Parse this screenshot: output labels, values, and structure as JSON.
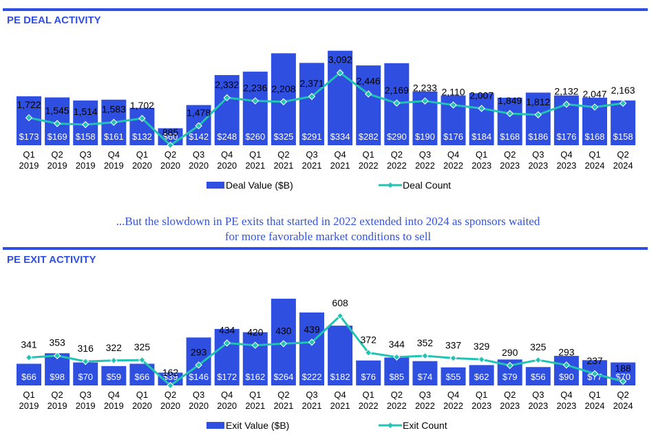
{
  "deal_section": {
    "title": "PE DEAL ACTIVITY"
  },
  "exit_section": {
    "title": "PE EXIT ACTIVITY"
  },
  "middle_text": {
    "line1": "...But the slowdown in PE exits that started in 2022 extended into 2024 as sponsors waited",
    "line2": "for more favorable market conditions to sell"
  },
  "colors": {
    "bar": "#2f4fe0",
    "line": "#22c3b4",
    "rule": "#2f4fe0",
    "title": "#2f4fe0"
  },
  "chart_data": [
    {
      "type": "bar",
      "name": "deal",
      "categories": [
        [
          "Q1",
          "2019"
        ],
        [
          "Q2",
          "2019"
        ],
        [
          "Q3",
          "2019"
        ],
        [
          "Q4",
          "2019"
        ],
        [
          "Q1",
          "2020"
        ],
        [
          "Q2",
          "2020"
        ],
        [
          "Q3",
          "2020"
        ],
        [
          "Q4",
          "2020"
        ],
        [
          "Q1",
          "2021"
        ],
        [
          "Q2",
          "2021"
        ],
        [
          "Q3",
          "2021"
        ],
        [
          "Q4",
          "2021"
        ],
        [
          "Q1",
          "2022"
        ],
        [
          "Q2",
          "2022"
        ],
        [
          "Q3",
          "2022"
        ],
        [
          "Q4",
          "2022"
        ],
        [
          "Q1",
          "2023"
        ],
        [
          "Q2",
          "2023"
        ],
        [
          "Q3",
          "2023"
        ],
        [
          "Q4",
          "2023"
        ],
        [
          "Q1",
          "2024"
        ],
        [
          "Q2",
          "2024"
        ]
      ],
      "series": [
        {
          "name": "Deal Value ($B)",
          "kind": "bar",
          "values": [
            173,
            169,
            158,
            161,
            132,
            60,
            142,
            248,
            260,
            325,
            291,
            334,
            282,
            290,
            190,
            176,
            184,
            168,
            186,
            176,
            168,
            158
          ],
          "labels": [
            "$173",
            "$169",
            "$158",
            "$161",
            "$132",
            "$60",
            "$142",
            "$248",
            "$260",
            "$325",
            "$291",
            "$334",
            "$282",
            "$290",
            "$190",
            "$176",
            "$184",
            "$168",
            "$186",
            "$176",
            "$168",
            "$158"
          ]
        },
        {
          "name": "Deal Count",
          "kind": "line",
          "values": [
            1722,
            1545,
            1514,
            1583,
            1702,
            885,
            1478,
            2332,
            2236,
            2208,
            2371,
            3092,
            2446,
            2169,
            2233,
            2110,
            2007,
            1849,
            1812,
            2132,
            2047,
            2163
          ],
          "labels": [
            "1,722",
            "1,545",
            "1,514",
            "1,583",
            "1,702",
            "885",
            "1,478",
            "2,332",
            "2,236",
            "2,208",
            "2,371",
            "3,092",
            "2,446",
            "2,169",
            "2,233",
            "2,110",
            "2,007",
            "1,849",
            "1,812",
            "2,132",
            "2,047",
            "2,163"
          ]
        }
      ],
      "legend_placement": "bottom"
    },
    {
      "type": "bar",
      "name": "exit",
      "categories": [
        [
          "Q1",
          "2019"
        ],
        [
          "Q2",
          "2019"
        ],
        [
          "Q3",
          "2019"
        ],
        [
          "Q4",
          "2019"
        ],
        [
          "Q1",
          "2020"
        ],
        [
          "Q2",
          "2020"
        ],
        [
          "Q3",
          "2020"
        ],
        [
          "Q4",
          "2020"
        ],
        [
          "Q1",
          "2021"
        ],
        [
          "Q2",
          "2021"
        ],
        [
          "Q3",
          "2021"
        ],
        [
          "Q4",
          "2021"
        ],
        [
          "Q1",
          "2022"
        ],
        [
          "Q2",
          "2022"
        ],
        [
          "Q3",
          "2022"
        ],
        [
          "Q4",
          "2022"
        ],
        [
          "Q1",
          "2023"
        ],
        [
          "Q2",
          "2023"
        ],
        [
          "Q3",
          "2023"
        ],
        [
          "Q4",
          "2023"
        ],
        [
          "Q1",
          "2024"
        ],
        [
          "Q2",
          "2024"
        ]
      ],
      "series": [
        {
          "name": "Exit Value ($B)",
          "kind": "bar",
          "values": [
            66,
            98,
            70,
            59,
            66,
            39,
            146,
            172,
            162,
            264,
            222,
            182,
            76,
            85,
            74,
            55,
            62,
            79,
            56,
            90,
            77,
            70
          ],
          "labels": [
            "$66",
            "$98",
            "$70",
            "$59",
            "$66",
            "$39",
            "$146",
            "$172",
            "$162",
            "$264",
            "$222",
            "$182",
            "$76",
            "$85",
            "$74",
            "$55",
            "$62",
            "$79",
            "$56",
            "$90",
            "$77",
            "$70"
          ]
        },
        {
          "name": "Exit Count",
          "kind": "line",
          "values": [
            341,
            353,
            316,
            322,
            325,
            162,
            293,
            434,
            420,
            430,
            439,
            608,
            372,
            344,
            352,
            337,
            329,
            290,
            325,
            293,
            237,
            188
          ],
          "labels": [
            "341",
            "353",
            "316",
            "322",
            "325",
            "162",
            "293",
            "434",
            "420",
            "430",
            "439",
            "608",
            "372",
            "344",
            "352",
            "337",
            "329",
            "290",
            "325",
            "293",
            "237",
            "188"
          ]
        }
      ],
      "legend_placement": "bottom"
    }
  ]
}
